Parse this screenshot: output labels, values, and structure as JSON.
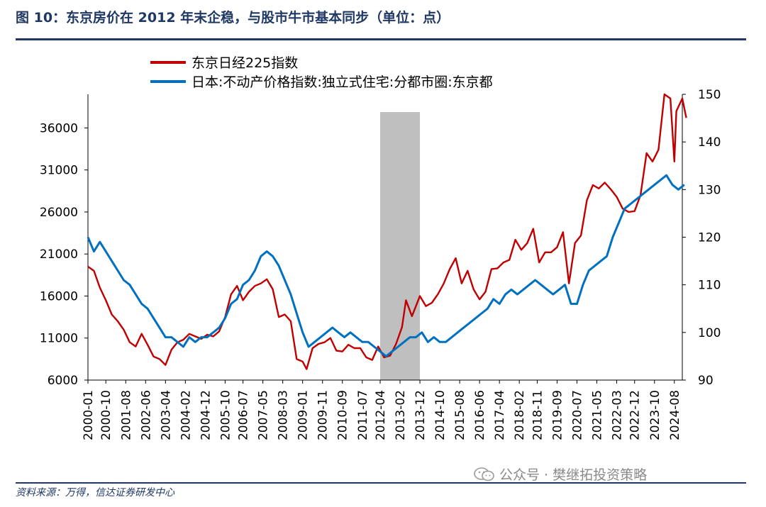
{
  "figure": {
    "title": "图 10：东京房价在 2012 年末企稳，与股市牛市基本同步（单位：点）",
    "source": "资料来源：万得，信达证券研发中心",
    "watermark": "公众号 · 樊继拓投资策略"
  },
  "chart_data": {
    "type": "line",
    "title": "",
    "x_range": [
      "2000-01",
      "2024-12"
    ],
    "x_tick_labels": [
      "2000-01",
      "2000-10",
      "2001-08",
      "2002-06",
      "2003-04",
      "2004-02",
      "2004-12",
      "2005-10",
      "2006-07",
      "2007-05",
      "2008-03",
      "2009-01",
      "2009-11",
      "2010-09",
      "2011-07",
      "2012-04",
      "2013-02",
      "2013-12",
      "2014-10",
      "2015-08",
      "2016-06",
      "2017-04",
      "2018-02",
      "2018-11",
      "2019-09",
      "2020-07",
      "2021-05",
      "2022-03",
      "2022-12",
      "2023-10",
      "2024-08"
    ],
    "y_left": {
      "range": [
        6000,
        40000
      ],
      "ticks": [
        6000,
        11000,
        16000,
        21000,
        26000,
        31000,
        36000
      ]
    },
    "y_right": {
      "range": [
        90,
        150
      ],
      "ticks": [
        90,
        100,
        110,
        120,
        130,
        140,
        150
      ]
    },
    "shaded_region": {
      "from": "2012-04",
      "to": "2013-12",
      "color": "#bfbfbf"
    },
    "legend_position": "top-left",
    "series": [
      {
        "name": "东京日经225指数",
        "axis": "left",
        "color": "#c00000",
        "points": [
          [
            "2000-01",
            19500
          ],
          [
            "2000-04",
            19000
          ],
          [
            "2000-07",
            17000
          ],
          [
            "2000-10",
            15500
          ],
          [
            "2001-01",
            13800
          ],
          [
            "2001-04",
            13000
          ],
          [
            "2001-07",
            12000
          ],
          [
            "2001-10",
            10500
          ],
          [
            "2002-01",
            10000
          ],
          [
            "2002-04",
            11500
          ],
          [
            "2002-07",
            10200
          ],
          [
            "2002-10",
            8800
          ],
          [
            "2003-01",
            8500
          ],
          [
            "2003-04",
            7800
          ],
          [
            "2003-07",
            9600
          ],
          [
            "2003-10",
            10500
          ],
          [
            "2004-01",
            10800
          ],
          [
            "2004-04",
            11500
          ],
          [
            "2004-07",
            11200
          ],
          [
            "2004-10",
            10900
          ],
          [
            "2005-01",
            11400
          ],
          [
            "2005-04",
            11200
          ],
          [
            "2005-07",
            11800
          ],
          [
            "2005-10",
            13500
          ],
          [
            "2006-01",
            16200
          ],
          [
            "2006-04",
            17200
          ],
          [
            "2006-07",
            15500
          ],
          [
            "2006-10",
            16500
          ],
          [
            "2007-01",
            17200
          ],
          [
            "2007-04",
            17500
          ],
          [
            "2007-07",
            18000
          ],
          [
            "2007-10",
            16800
          ],
          [
            "2008-01",
            13500
          ],
          [
            "2008-04",
            13800
          ],
          [
            "2008-07",
            13000
          ],
          [
            "2008-10",
            8500
          ],
          [
            "2009-01",
            8200
          ],
          [
            "2009-03",
            7300
          ],
          [
            "2009-06",
            9800
          ],
          [
            "2009-09",
            10300
          ],
          [
            "2009-12",
            10500
          ],
          [
            "2010-03",
            11000
          ],
          [
            "2010-06",
            9500
          ],
          [
            "2010-09",
            9400
          ],
          [
            "2010-12",
            10200
          ],
          [
            "2011-03",
            9800
          ],
          [
            "2011-06",
            9800
          ],
          [
            "2011-09",
            8700
          ],
          [
            "2011-12",
            8400
          ],
          [
            "2012-03",
            10000
          ],
          [
            "2012-06",
            8700
          ],
          [
            "2012-09",
            8900
          ],
          [
            "2012-12",
            10300
          ],
          [
            "2013-03",
            12300
          ],
          [
            "2013-05",
            15500
          ],
          [
            "2013-08",
            13600
          ],
          [
            "2013-12",
            16000
          ],
          [
            "2014-03",
            14800
          ],
          [
            "2014-06",
            15200
          ],
          [
            "2014-09",
            16200
          ],
          [
            "2014-12",
            17500
          ],
          [
            "2015-03",
            19200
          ],
          [
            "2015-06",
            20500
          ],
          [
            "2015-09",
            17500
          ],
          [
            "2015-12",
            19000
          ],
          [
            "2016-03",
            16800
          ],
          [
            "2016-06",
            15600
          ],
          [
            "2016-09",
            16500
          ],
          [
            "2016-12",
            19200
          ],
          [
            "2017-03",
            19300
          ],
          [
            "2017-06",
            20000
          ],
          [
            "2017-09",
            20300
          ],
          [
            "2017-12",
            22700
          ],
          [
            "2018-03",
            21500
          ],
          [
            "2018-06",
            22300
          ],
          [
            "2018-09",
            24000
          ],
          [
            "2018-12",
            20000
          ],
          [
            "2019-03",
            21200
          ],
          [
            "2019-06",
            21200
          ],
          [
            "2019-09",
            21800
          ],
          [
            "2019-12",
            23600
          ],
          [
            "2020-03",
            17500
          ],
          [
            "2020-06",
            22300
          ],
          [
            "2020-09",
            23200
          ],
          [
            "2020-12",
            27400
          ],
          [
            "2021-03",
            29200
          ],
          [
            "2021-06",
            28800
          ],
          [
            "2021-09",
            29500
          ],
          [
            "2021-12",
            28700
          ],
          [
            "2022-03",
            27800
          ],
          [
            "2022-06",
            26400
          ],
          [
            "2022-09",
            26000
          ],
          [
            "2022-12",
            26100
          ],
          [
            "2023-03",
            28000
          ],
          [
            "2023-06",
            33000
          ],
          [
            "2023-09",
            32000
          ],
          [
            "2023-12",
            33400
          ],
          [
            "2024-03",
            40000
          ],
          [
            "2024-06",
            39500
          ],
          [
            "2024-08",
            32000
          ],
          [
            "2024-09",
            38000
          ],
          [
            "2024-12",
            39500
          ],
          [
            "2025-02",
            37200
          ]
        ]
      },
      {
        "name": "日本:不动产价格指数:独立式住宅:分都市圈:东京都",
        "axis": "right",
        "color": "#0070c0",
        "points": [
          [
            "2000-01",
            120
          ],
          [
            "2000-04",
            117
          ],
          [
            "2000-07",
            119
          ],
          [
            "2000-10",
            117
          ],
          [
            "2001-01",
            115
          ],
          [
            "2001-04",
            113
          ],
          [
            "2001-07",
            111
          ],
          [
            "2001-10",
            110
          ],
          [
            "2002-01",
            108
          ],
          [
            "2002-04",
            106
          ],
          [
            "2002-07",
            105
          ],
          [
            "2002-10",
            103
          ],
          [
            "2003-01",
            101
          ],
          [
            "2003-04",
            99
          ],
          [
            "2003-07",
            99
          ],
          [
            "2003-10",
            98
          ],
          [
            "2004-01",
            97
          ],
          [
            "2004-04",
            99
          ],
          [
            "2004-07",
            98
          ],
          [
            "2004-10",
            99
          ],
          [
            "2005-01",
            99
          ],
          [
            "2005-04",
            100
          ],
          [
            "2005-07",
            101
          ],
          [
            "2005-10",
            103
          ],
          [
            "2006-01",
            106
          ],
          [
            "2006-04",
            107
          ],
          [
            "2006-07",
            110
          ],
          [
            "2006-10",
            111
          ],
          [
            "2007-01",
            113
          ],
          [
            "2007-04",
            116
          ],
          [
            "2007-07",
            117
          ],
          [
            "2007-10",
            116
          ],
          [
            "2008-01",
            114
          ],
          [
            "2008-04",
            111
          ],
          [
            "2008-07",
            108
          ],
          [
            "2008-10",
            104
          ],
          [
            "2009-01",
            100
          ],
          [
            "2009-04",
            97
          ],
          [
            "2009-07",
            98
          ],
          [
            "2009-10",
            99
          ],
          [
            "2010-01",
            100
          ],
          [
            "2010-04",
            101
          ],
          [
            "2010-07",
            100
          ],
          [
            "2010-10",
            99
          ],
          [
            "2011-01",
            100
          ],
          [
            "2011-04",
            99
          ],
          [
            "2011-07",
            98
          ],
          [
            "2011-10",
            98
          ],
          [
            "2012-01",
            97
          ],
          [
            "2012-04",
            96
          ],
          [
            "2012-07",
            95
          ],
          [
            "2012-10",
            96
          ],
          [
            "2013-01",
            97
          ],
          [
            "2013-04",
            98
          ],
          [
            "2013-07",
            99
          ],
          [
            "2013-10",
            99
          ],
          [
            "2014-01",
            100
          ],
          [
            "2014-04",
            98
          ],
          [
            "2014-07",
            99
          ],
          [
            "2014-10",
            98
          ],
          [
            "2015-01",
            98
          ],
          [
            "2015-04",
            99
          ],
          [
            "2015-07",
            100
          ],
          [
            "2015-10",
            101
          ],
          [
            "2016-01",
            102
          ],
          [
            "2016-04",
            103
          ],
          [
            "2016-07",
            104
          ],
          [
            "2016-10",
            105
          ],
          [
            "2017-01",
            107
          ],
          [
            "2017-04",
            106
          ],
          [
            "2017-07",
            108
          ],
          [
            "2017-10",
            109
          ],
          [
            "2018-01",
            108
          ],
          [
            "2018-04",
            109
          ],
          [
            "2018-07",
            110
          ],
          [
            "2018-10",
            111
          ],
          [
            "2019-01",
            110
          ],
          [
            "2019-04",
            109
          ],
          [
            "2019-07",
            108
          ],
          [
            "2019-10",
            109
          ],
          [
            "2020-01",
            110
          ],
          [
            "2020-04",
            106
          ],
          [
            "2020-07",
            106
          ],
          [
            "2020-10",
            110
          ],
          [
            "2021-01",
            113
          ],
          [
            "2021-04",
            114
          ],
          [
            "2021-07",
            115
          ],
          [
            "2021-10",
            116
          ],
          [
            "2022-01",
            120
          ],
          [
            "2022-04",
            123
          ],
          [
            "2022-07",
            126
          ],
          [
            "2022-10",
            127
          ],
          [
            "2023-01",
            128
          ],
          [
            "2023-04",
            129
          ],
          [
            "2023-07",
            130
          ],
          [
            "2023-10",
            131
          ],
          [
            "2024-01",
            132
          ],
          [
            "2024-04",
            133
          ],
          [
            "2024-07",
            131
          ],
          [
            "2024-10",
            130
          ],
          [
            "2025-01",
            131
          ]
        ]
      }
    ]
  }
}
